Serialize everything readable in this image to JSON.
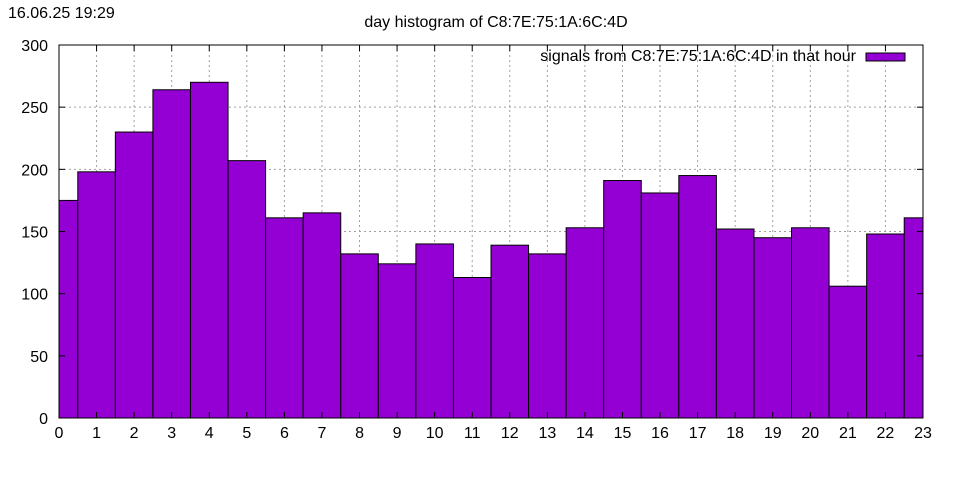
{
  "timestamp": "16.06.25 19:29",
  "chart_data": {
    "type": "bar",
    "title": "day histogram of C8:7E:75:1A:6C:4D",
    "xlabel": "",
    "ylabel": "",
    "x_ticks": [
      0,
      1,
      2,
      3,
      4,
      5,
      6,
      7,
      8,
      9,
      10,
      11,
      12,
      13,
      14,
      15,
      16,
      17,
      18,
      19,
      20,
      21,
      22,
      23
    ],
    "y_ticks": [
      0,
      50,
      100,
      150,
      200,
      250,
      300
    ],
    "xlim": [
      0,
      23
    ],
    "ylim": [
      0,
      300
    ],
    "grid": true,
    "legend_position": "top-right",
    "bar_color": "#9400d3",
    "series": [
      {
        "name": "signals from C8:7E:75:1A:6C:4D in that hour",
        "categories": [
          0,
          1,
          2,
          3,
          4,
          5,
          6,
          7,
          8,
          9,
          10,
          11,
          12,
          13,
          14,
          15,
          16,
          17,
          18,
          19,
          20,
          21,
          22,
          23
        ],
        "values": [
          175,
          198,
          230,
          264,
          270,
          207,
          161,
          165,
          132,
          124,
          140,
          113,
          139,
          132,
          153,
          191,
          181,
          195,
          152,
          145,
          153,
          106,
          148,
          161
        ]
      }
    ]
  }
}
